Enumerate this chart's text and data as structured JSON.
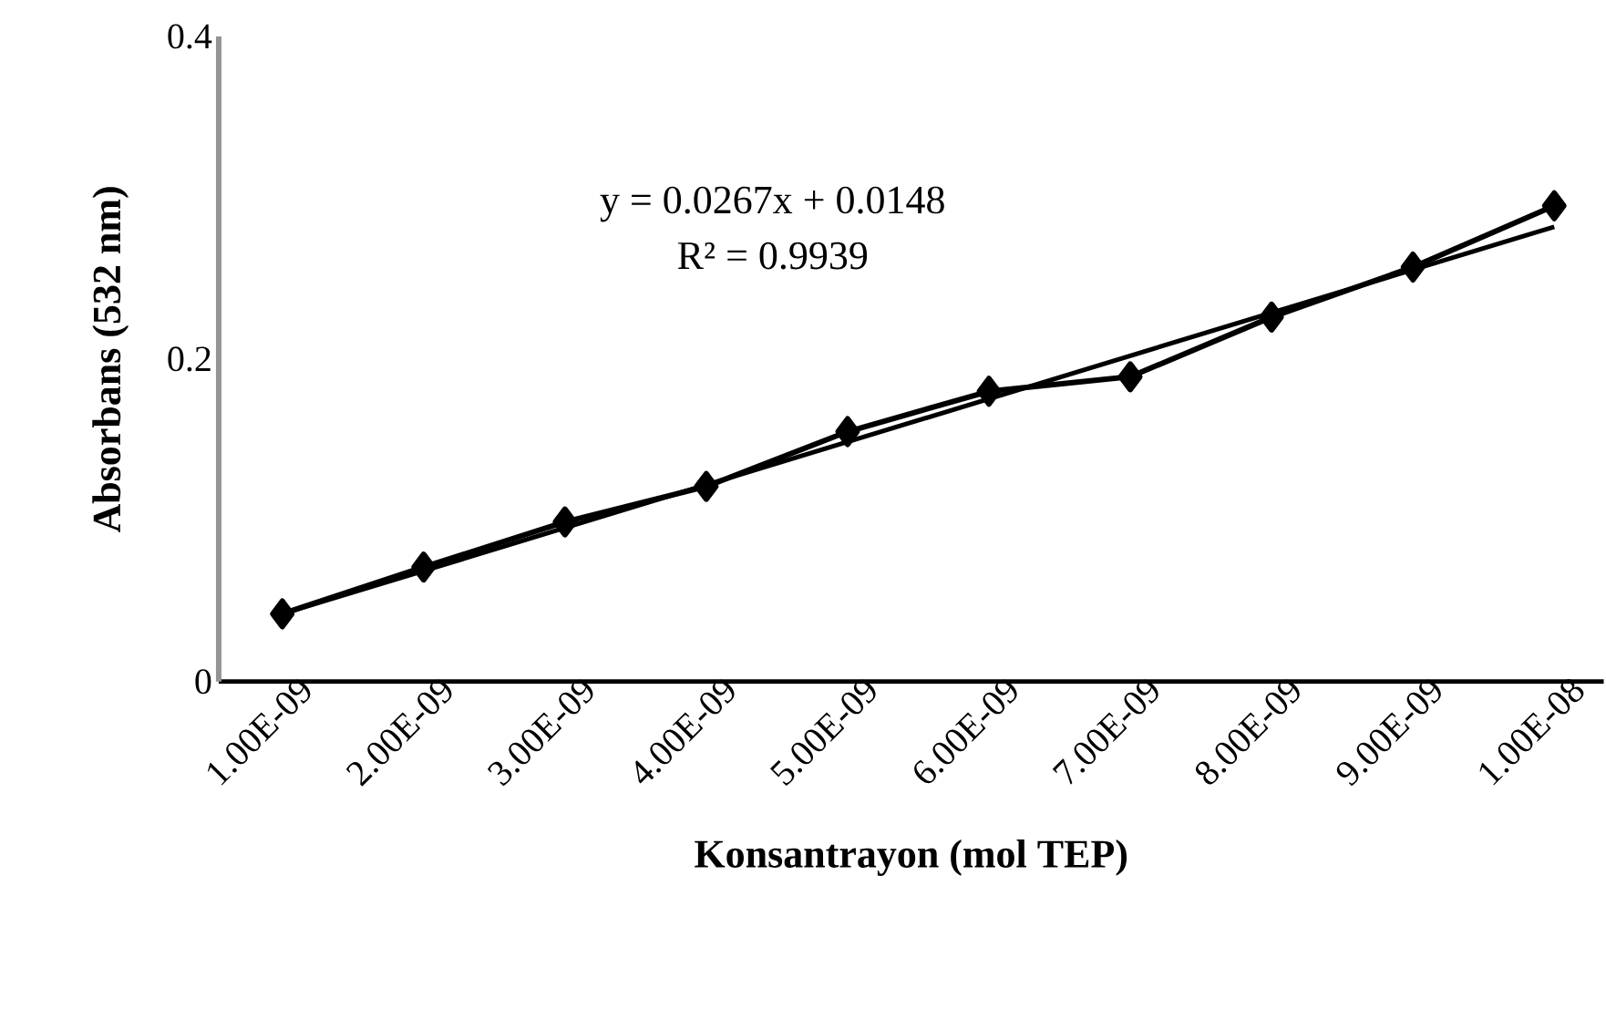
{
  "chart_data": {
    "type": "line",
    "xlabel": "Konsantrayon (mol TEP)",
    "ylabel": "Absorbans (532 nm)",
    "categories": [
      "1.00E-09",
      "2.00E-09",
      "3.00E-09",
      "4.00E-09",
      "5.00E-09",
      "6.00E-09",
      "7.00E-09",
      "8.00E-09",
      "9.00E-09",
      "1.00E-08"
    ],
    "series": [
      {
        "color": "#000000",
        "values": [
          0.042,
          0.071,
          0.099,
          0.121,
          0.155,
          0.18,
          0.189,
          0.226,
          0.257,
          0.295
        ],
        "marker": "diamond"
      },
      {
        "type": "line",
        "color": "#000000",
        "x": [
          "1.00E-09",
          "1.00E-08"
        ],
        "values": [
          0.042,
          0.282
        ],
        "marker": "none"
      }
    ],
    "ylim": [
      0,
      0.4
    ],
    "yticks": [
      0,
      0.2,
      0.4
    ],
    "grid": false,
    "line_style": "solid",
    "annotations": [
      "y = 0.0267x + 0.0148",
      "R² = 0.9939"
    ]
  }
}
